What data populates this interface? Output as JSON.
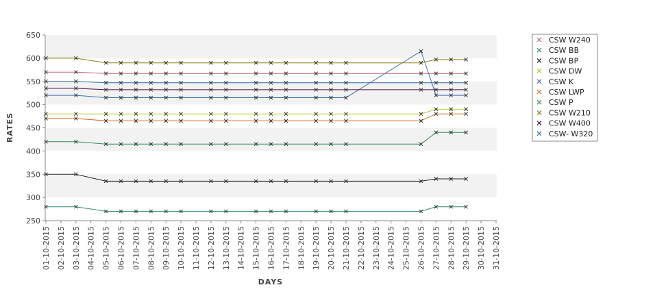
{
  "chart_data": {
    "type": "line",
    "title": "",
    "xlabel": "DAYS",
    "ylabel": "RATES",
    "ylim": [
      250,
      650
    ],
    "yticks": [
      250,
      300,
      350,
      400,
      450,
      500,
      550,
      600,
      650
    ],
    "grid": "alternating horizontal bands",
    "legend_position": "right",
    "x_tick_labels": [
      "01-10-2015",
      "02-10-2015",
      "03-10-2015",
      "04-10-2015",
      "05-10-2015",
      "06-10-2015",
      "07-10-2015",
      "08-10-2015",
      "09-10-2015",
      "10-10-2015",
      "11-10-2015",
      "12-10-2015",
      "13-10-2015",
      "14-10-2015",
      "15-10-2015",
      "16-10-2015",
      "17-10-2015",
      "18-10-2015",
      "19-10-2015",
      "20-10-2015",
      "21-10-2015",
      "22-10-2015",
      "23-10-2015",
      "24-10-2015",
      "25-10-2015",
      "26-10-2015",
      "27-10-2015",
      "28-10-2015",
      "29-10-2015",
      "30-10-2015",
      "31-10-2015"
    ],
    "x": [
      "01-10-2015",
      "03-10-2015",
      "05-10-2015",
      "06-10-2015",
      "07-10-2015",
      "08-10-2015",
      "09-10-2015",
      "10-10-2015",
      "12-10-2015",
      "13-10-2015",
      "15-10-2015",
      "16-10-2015",
      "17-10-2015",
      "19-10-2015",
      "20-10-2015",
      "21-10-2015",
      "26-10-2015",
      "27-10-2015",
      "28-10-2015",
      "29-10-2015"
    ],
    "series": [
      {
        "name": "CSW  W240",
        "color": "#c06070",
        "values": [
          570,
          570,
          567,
          567,
          567,
          567,
          567,
          567,
          567,
          567,
          567,
          567,
          567,
          567,
          567,
          567,
          567,
          567,
          567,
          567
        ]
      },
      {
        "name": "CSW BB",
        "color": "#2e8b6e",
        "values": [
          280,
          280,
          270,
          270,
          270,
          270,
          270,
          270,
          270,
          270,
          270,
          270,
          270,
          270,
          270,
          270,
          270,
          280,
          280,
          280
        ]
      },
      {
        "name": "CSW BP",
        "color": "#222222",
        "values": [
          350,
          350,
          335,
          335,
          335,
          335,
          335,
          335,
          335,
          335,
          335,
          335,
          335,
          335,
          335,
          335,
          335,
          340,
          340,
          340
        ]
      },
      {
        "name": "CSW DW",
        "color": "#b8c820",
        "values": [
          480,
          480,
          480,
          480,
          480,
          480,
          480,
          480,
          480,
          480,
          480,
          480,
          480,
          480,
          480,
          480,
          480,
          490,
          490,
          490
        ]
      },
      {
        "name": "CSW K",
        "color": "#3f6fa8",
        "values": [
          520,
          520,
          515,
          515,
          515,
          515,
          515,
          515,
          515,
          515,
          515,
          515,
          515,
          515,
          515,
          515,
          615,
          520,
          520,
          520
        ]
      },
      {
        "name": "CSW LWP",
        "color": "#d06818",
        "values": [
          470,
          470,
          465,
          465,
          465,
          465,
          465,
          465,
          465,
          465,
          465,
          465,
          465,
          465,
          465,
          465,
          465,
          480,
          480,
          480
        ]
      },
      {
        "name": "CSW P",
        "color": "#2e8b57",
        "values": [
          420,
          420,
          415,
          415,
          415,
          415,
          415,
          415,
          415,
          415,
          415,
          415,
          415,
          415,
          415,
          415,
          415,
          440,
          440,
          440
        ]
      },
      {
        "name": "CSW W210",
        "color": "#8a7a10",
        "values": [
          600,
          600,
          590,
          590,
          590,
          590,
          590,
          590,
          590,
          590,
          590,
          590,
          590,
          590,
          590,
          590,
          590,
          597,
          597,
          597
        ]
      },
      {
        "name": "CSW W400",
        "color": "#4a0a4a",
        "values": [
          535,
          535,
          532,
          532,
          532,
          532,
          532,
          532,
          532,
          532,
          532,
          532,
          532,
          532,
          532,
          532,
          532,
          532,
          532,
          532
        ]
      },
      {
        "name": "CSW- W320",
        "color": "#2c6ea8",
        "values": [
          550,
          550,
          547,
          547,
          547,
          547,
          547,
          547,
          547,
          547,
          547,
          547,
          547,
          547,
          547,
          547,
          547,
          547,
          547,
          547
        ]
      }
    ]
  }
}
